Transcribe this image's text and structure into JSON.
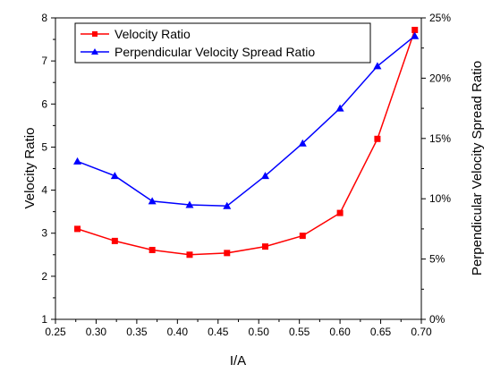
{
  "chart_data": {
    "type": "line",
    "xlabel": "I/A",
    "ylabel": "Velocity Ratio",
    "y2label": "Perpendicular Velocity Spread Ratio",
    "xlim": [
      0.25,
      0.7
    ],
    "ylim": [
      1,
      8
    ],
    "y2lim": [
      0,
      25
    ],
    "x_ticks": [
      "0.25",
      "0.30",
      "0.35",
      "0.40",
      "0.45",
      "0.50",
      "0.55",
      "0.60",
      "0.65",
      "0.70"
    ],
    "y_ticks": [
      "1",
      "2",
      "3",
      "4",
      "5",
      "6",
      "7",
      "8"
    ],
    "y2_ticks": [
      "0%",
      "5%",
      "10%",
      "15%",
      "20%",
      "25%"
    ],
    "legend_position": "top-left",
    "x": [
      0.277,
      0.323,
      0.369,
      0.415,
      0.461,
      0.508,
      0.554,
      0.6,
      0.646,
      0.692
    ],
    "series": [
      {
        "name": "Velocity Ratio",
        "axis": "left",
        "color": "#ff0000",
        "marker": "square",
        "values": [
          3.1,
          2.82,
          2.61,
          2.5,
          2.54,
          2.69,
          2.94,
          3.47,
          5.19,
          7.72
        ]
      },
      {
        "name": "Perpendicular Velocity Spread Ratio",
        "axis": "right",
        "unit": "%",
        "color": "#0000ff",
        "marker": "triangle",
        "values": [
          13.1,
          11.9,
          9.8,
          9.5,
          9.4,
          11.9,
          14.6,
          17.5,
          21.0,
          23.5
        ]
      }
    ]
  }
}
